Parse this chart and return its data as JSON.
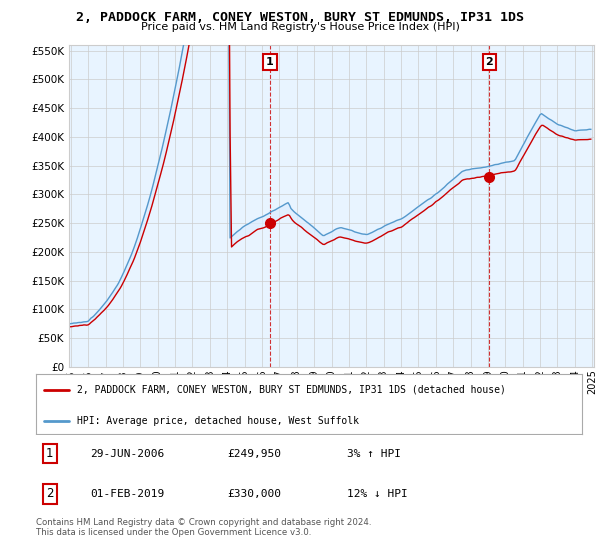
{
  "title": "2, PADDOCK FARM, CONEY WESTON, BURY ST EDMUNDS, IP31 1DS",
  "subtitle": "Price paid vs. HM Land Registry's House Price Index (HPI)",
  "hpi_label": "HPI: Average price, detached house, West Suffolk",
  "property_label": "2, PADDOCK FARM, CONEY WESTON, BURY ST EDMUNDS, IP31 1DS (detached house)",
  "red_color": "#cc0000",
  "blue_color": "#5599cc",
  "fill_color": "#ddeeff",
  "marker1_date": "29-JUN-2006",
  "marker1_price": 249950,
  "marker1_pct": "3% ↑ HPI",
  "marker2_date": "01-FEB-2019",
  "marker2_price": 330000,
  "marker2_pct": "12% ↓ HPI",
  "ylim": [
    0,
    560000
  ],
  "yticks": [
    0,
    50000,
    100000,
    150000,
    200000,
    250000,
    300000,
    350000,
    400000,
    450000,
    500000,
    550000
  ],
  "xstart": 1995,
  "xend": 2025,
  "footer": "Contains HM Land Registry data © Crown copyright and database right 2024.\nThis data is licensed under the Open Government Licence v3.0.",
  "background_color": "#ffffff",
  "plot_bg_color": "#e8f4ff",
  "grid_color": "#cccccc"
}
